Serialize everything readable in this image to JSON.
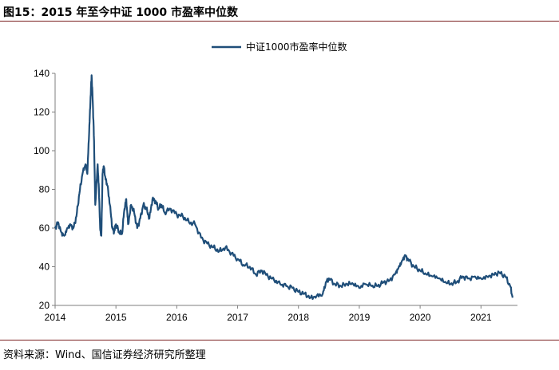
{
  "figure": {
    "title": "图15：2015 年至今中证 1000 市盈率中位数",
    "source": "资料来源：Wind、国信证券经济研究所整理"
  },
  "colors": {
    "series": "#1f4e79",
    "axis": "#7f7f7f",
    "rule": "#7a1f1f"
  },
  "chart_data": {
    "type": "line",
    "title": "",
    "xlabel": "",
    "ylabel": "",
    "legend": "top-center",
    "grid": false,
    "xlim": [
      2014.0,
      2021.6
    ],
    "ylim": [
      20,
      140
    ],
    "x_ticks": [
      "2014",
      "2015",
      "2016",
      "2017",
      "2018",
      "2019",
      "2020",
      "2021"
    ],
    "y_ticks": [
      20,
      40,
      60,
      80,
      100,
      120,
      140
    ],
    "series": [
      {
        "name": "中证1000市盈率中位数",
        "x": [
          2014.0,
          2014.05,
          2014.1,
          2014.15,
          2014.2,
          2014.25,
          2014.3,
          2014.35,
          2014.4,
          2014.45,
          2014.5,
          2014.53,
          2014.56,
          2014.58,
          2014.6,
          2014.62,
          2014.64,
          2014.66,
          2014.7,
          2014.72,
          2014.74,
          2014.76,
          2014.78,
          2014.8,
          2014.83,
          2014.86,
          2014.9,
          2014.94,
          2014.97,
          2015.0,
          2015.05,
          2015.1,
          2015.14,
          2015.17,
          2015.2,
          2015.25,
          2015.3,
          2015.35,
          2015.4,
          2015.45,
          2015.5,
          2015.55,
          2015.6,
          2015.65,
          2015.7,
          2015.75,
          2015.8,
          2015.9,
          2016.0,
          2016.1,
          2016.2,
          2016.3,
          2016.4,
          2016.5,
          2016.6,
          2016.7,
          2016.8,
          2016.9,
          2017.0,
          2017.1,
          2017.2,
          2017.3,
          2017.4,
          2017.5,
          2017.6,
          2017.7,
          2017.8,
          2017.9,
          2018.0,
          2018.1,
          2018.2,
          2018.3,
          2018.4,
          2018.45,
          2018.5,
          2018.6,
          2018.7,
          2018.8,
          2018.9,
          2019.0,
          2019.1,
          2019.2,
          2019.3,
          2019.4,
          2019.5,
          2019.6,
          2019.65,
          2019.7,
          2019.75,
          2019.8,
          2019.9,
          2020.0,
          2020.1,
          2020.2,
          2020.3,
          2020.4,
          2020.5,
          2020.6,
          2020.7,
          2020.8,
          2020.9,
          2021.0,
          2021.1,
          2021.2,
          2021.3,
          2021.4,
          2021.48,
          2021.52
        ],
        "values": [
          60,
          63,
          58,
          56,
          60,
          62,
          60,
          66,
          78,
          88,
          93,
          88,
          110,
          125,
          139,
          125,
          105,
          72,
          93,
          80,
          60,
          56,
          88,
          92,
          85,
          82,
          72,
          60,
          58,
          62,
          58,
          57,
          70,
          75,
          62,
          72,
          68,
          60,
          65,
          72,
          70,
          65,
          75,
          74,
          70,
          72,
          68,
          70,
          67,
          66,
          63,
          62,
          55,
          52,
          50,
          48,
          50,
          47,
          44,
          41,
          40,
          36,
          38,
          35,
          33,
          31,
          30,
          29,
          27,
          26,
          24,
          25,
          26,
          32,
          34,
          31,
          30,
          31,
          31,
          29,
          31,
          30,
          30,
          32,
          33,
          37,
          40,
          43,
          46,
          44,
          40,
          38,
          36,
          35,
          34,
          32,
          31,
          32,
          35,
          34,
          35,
          34,
          35,
          36,
          37,
          35,
          30,
          24
        ]
      }
    ]
  }
}
